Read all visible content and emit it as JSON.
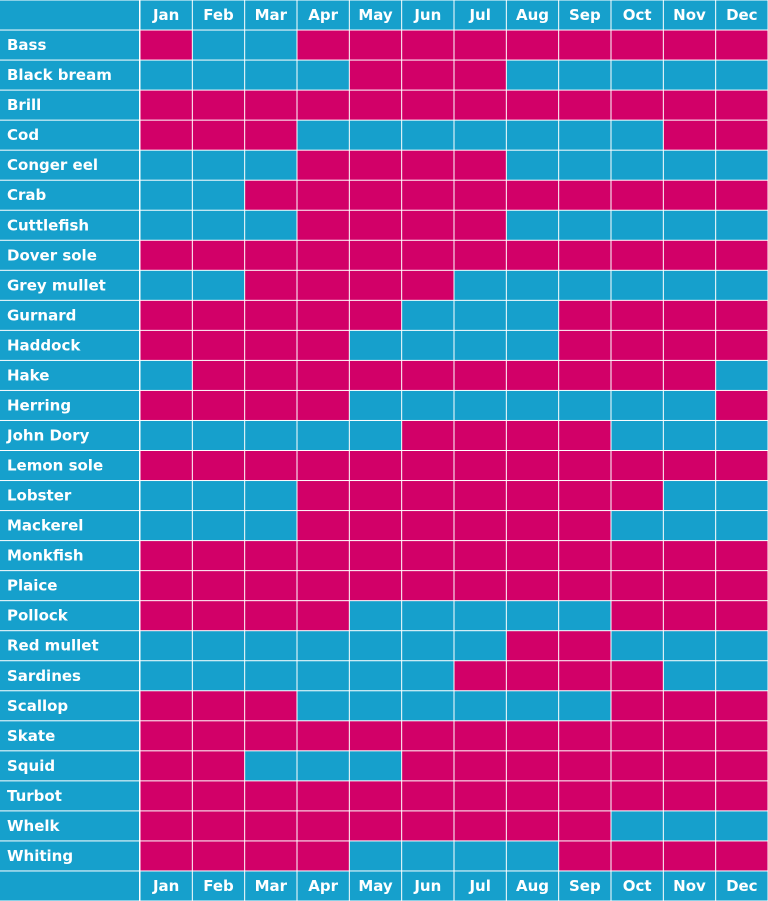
{
  "chart_data": {
    "type": "heatmap",
    "columns": [
      "Jan",
      "Feb",
      "Mar",
      "Apr",
      "May",
      "Jun",
      "Jul",
      "Aug",
      "Sep",
      "Oct",
      "Nov",
      "Dec"
    ],
    "rows": [
      "Bass",
      "Black bream",
      "Brill",
      "Cod",
      "Conger eel",
      "Crab",
      "Cuttlefish",
      "Dover sole",
      "Grey mullet",
      "Gurnard",
      "Haddock",
      "Hake",
      "Herring",
      "John Dory",
      "Lemon sole",
      "Lobster",
      "Mackerel",
      "Monkfish",
      "Plaice",
      "Pollock",
      "Red mullet",
      "Sardines",
      "Scallop",
      "Skate",
      "Squid",
      "Turbot",
      "Whelk",
      "Whiting"
    ],
    "values": [
      [
        1,
        0,
        0,
        1,
        1,
        1,
        1,
        1,
        1,
        1,
        1,
        1
      ],
      [
        0,
        0,
        0,
        0,
        1,
        1,
        1,
        0,
        0,
        0,
        0,
        0
      ],
      [
        1,
        1,
        1,
        1,
        1,
        1,
        1,
        1,
        1,
        1,
        1,
        1
      ],
      [
        1,
        1,
        1,
        0,
        0,
        0,
        0,
        0,
        0,
        0,
        1,
        1
      ],
      [
        0,
        0,
        0,
        1,
        1,
        1,
        1,
        0,
        0,
        0,
        0,
        0
      ],
      [
        0,
        0,
        1,
        1,
        1,
        1,
        1,
        1,
        1,
        1,
        1,
        1
      ],
      [
        0,
        0,
        0,
        1,
        1,
        1,
        1,
        0,
        0,
        0,
        0,
        0
      ],
      [
        1,
        1,
        1,
        1,
        1,
        1,
        1,
        1,
        1,
        1,
        1,
        1
      ],
      [
        0,
        0,
        1,
        1,
        1,
        1,
        0,
        0,
        0,
        0,
        0,
        0
      ],
      [
        1,
        1,
        1,
        1,
        1,
        0,
        0,
        0,
        1,
        1,
        1,
        1
      ],
      [
        1,
        1,
        1,
        1,
        0,
        0,
        0,
        0,
        1,
        1,
        1,
        1
      ],
      [
        0,
        1,
        1,
        1,
        1,
        1,
        1,
        1,
        1,
        1,
        1,
        0
      ],
      [
        1,
        1,
        1,
        1,
        0,
        0,
        0,
        0,
        0,
        0,
        0,
        1
      ],
      [
        0,
        0,
        0,
        0,
        0,
        1,
        1,
        1,
        1,
        0,
        0,
        0
      ],
      [
        1,
        1,
        1,
        1,
        1,
        1,
        1,
        1,
        1,
        1,
        1,
        1
      ],
      [
        0,
        0,
        0,
        1,
        1,
        1,
        1,
        1,
        1,
        1,
        0,
        0
      ],
      [
        0,
        0,
        0,
        1,
        1,
        1,
        1,
        1,
        1,
        0,
        0,
        0
      ],
      [
        1,
        1,
        1,
        1,
        1,
        1,
        1,
        1,
        1,
        1,
        1,
        1
      ],
      [
        1,
        1,
        1,
        1,
        1,
        1,
        1,
        1,
        1,
        1,
        1,
        1
      ],
      [
        1,
        1,
        1,
        1,
        0,
        0,
        0,
        0,
        0,
        1,
        1,
        1
      ],
      [
        0,
        0,
        0,
        0,
        0,
        0,
        0,
        1,
        1,
        0,
        0,
        0
      ],
      [
        0,
        0,
        0,
        0,
        0,
        0,
        1,
        1,
        1,
        1,
        0,
        0
      ],
      [
        1,
        1,
        1,
        0,
        0,
        0,
        0,
        0,
        0,
        1,
        1,
        1
      ],
      [
        1,
        1,
        1,
        1,
        1,
        1,
        1,
        1,
        1,
        1,
        1,
        1
      ],
      [
        1,
        1,
        0,
        0,
        0,
        1,
        1,
        1,
        1,
        1,
        1,
        1
      ],
      [
        1,
        1,
        1,
        1,
        1,
        1,
        1,
        1,
        1,
        1,
        1,
        1
      ],
      [
        1,
        1,
        1,
        1,
        1,
        1,
        1,
        1,
        1,
        0,
        0,
        0
      ],
      [
        1,
        1,
        1,
        1,
        0,
        0,
        0,
        0,
        1,
        1,
        1,
        1
      ]
    ],
    "colors": {
      "1": "#d20068",
      "0": "#16a0cc",
      "header": "#16a0cc",
      "grid": "#ffffff"
    }
  }
}
